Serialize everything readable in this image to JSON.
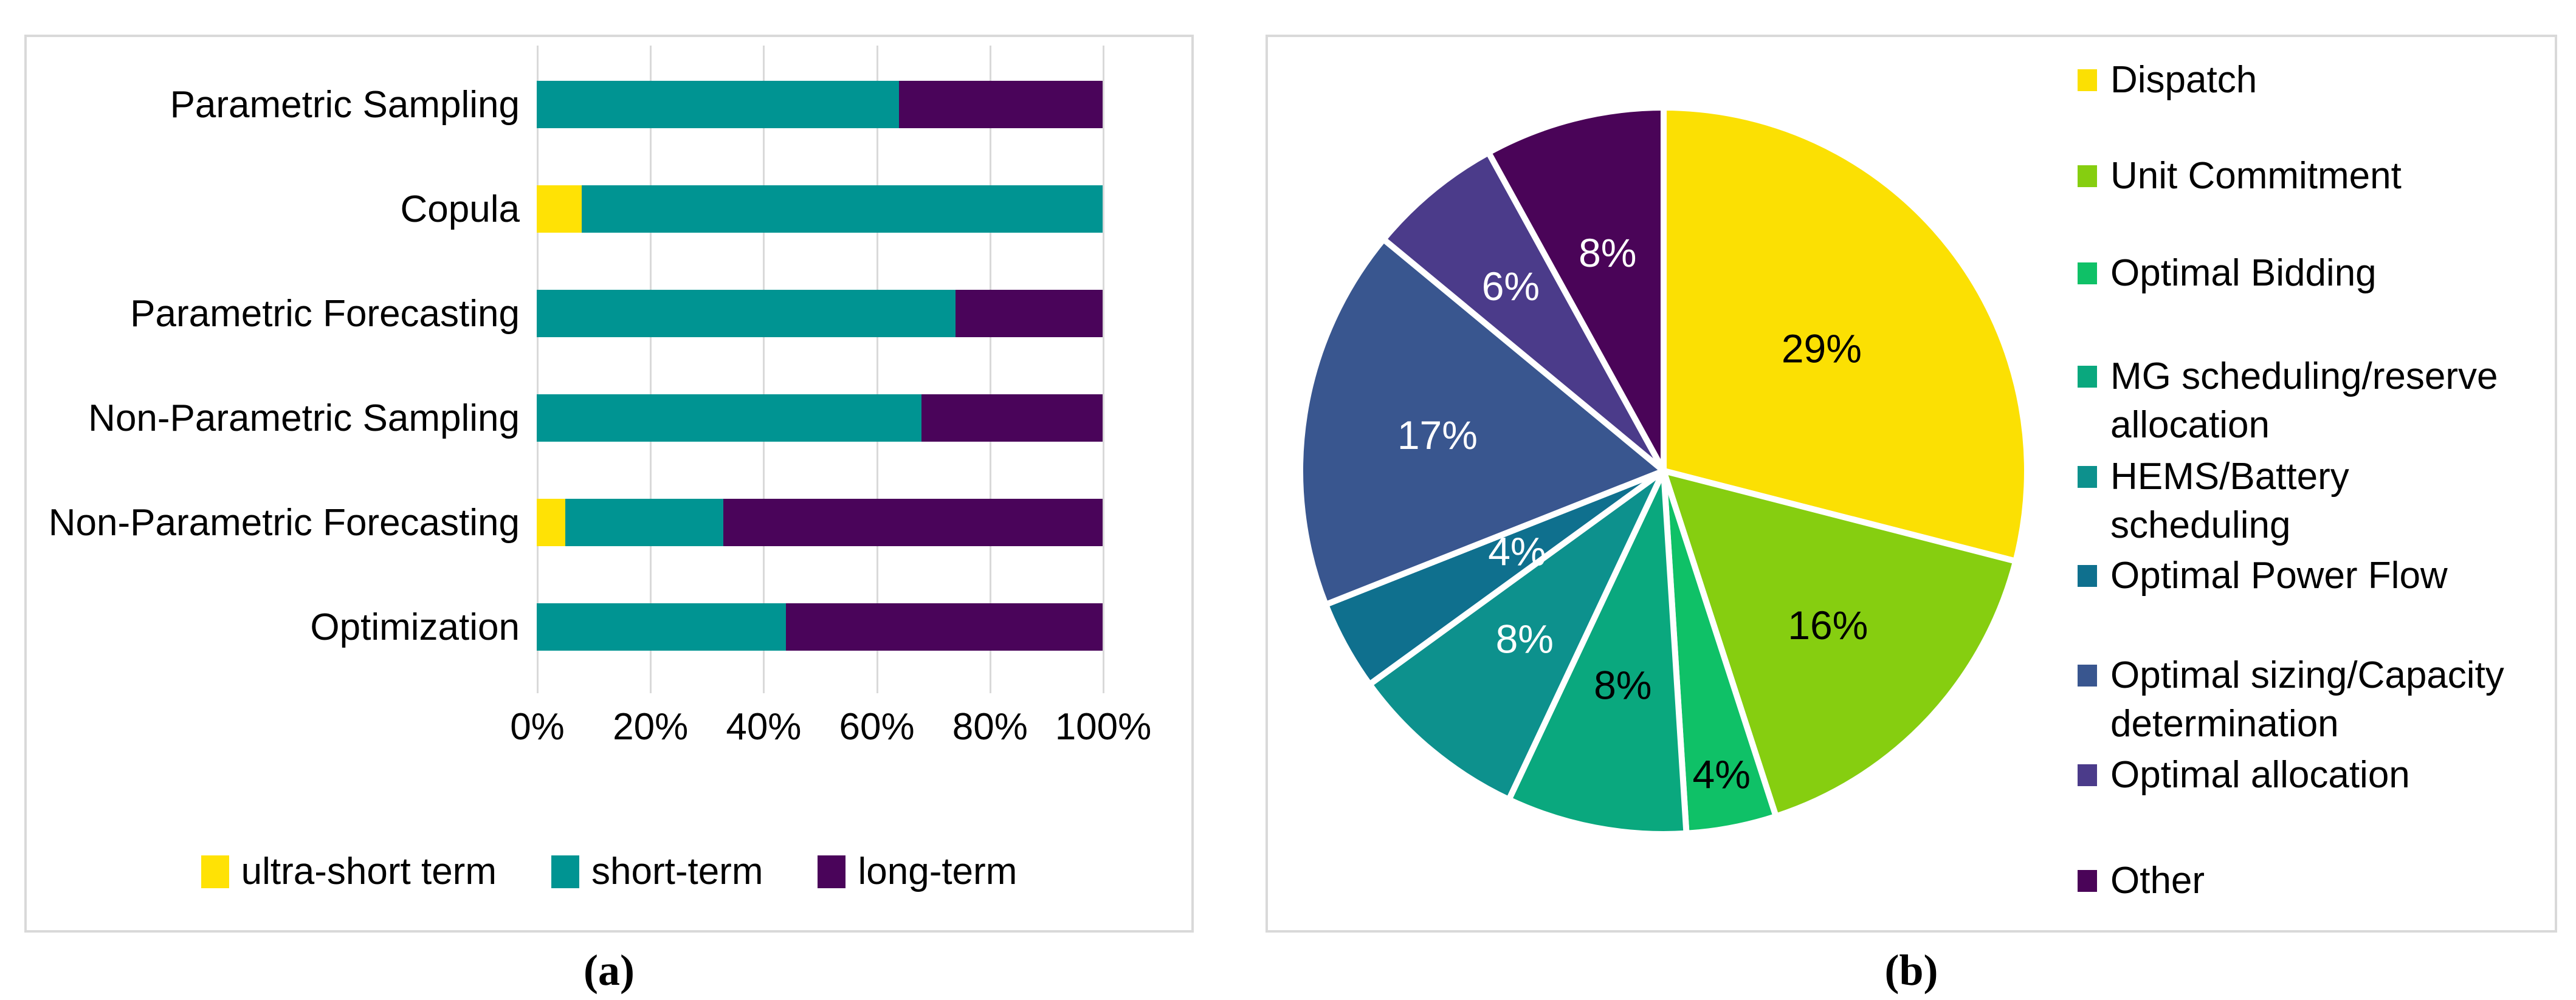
{
  "captions": {
    "a": "(a)",
    "b": "(b)"
  },
  "colors": {
    "panel_border": "#d9d9d9",
    "gridline": "#d9d9d9",
    "ultra_short": "#FFE205",
    "short": "#009492",
    "long": "#4A045A",
    "pie_slices": [
      "#FBE003",
      "#86CE10",
      "#0FC167",
      "#0AA87E",
      "#0D918D",
      "#0F708E",
      "#39568F",
      "#4B3B8A",
      "#4A0458"
    ]
  },
  "chart_data": [
    {
      "type": "bar",
      "orientation": "horizontal-stacked",
      "title": "",
      "categories": [
        "Parametric Sampling",
        "Copula",
        "Parametric Forecasting",
        "Non-Parametric Sampling",
        "Non-Parametric Forecasting",
        "Optimization"
      ],
      "series": [
        {
          "name": "ultra-short term",
          "color_key": "ultra_short",
          "values": [
            0,
            8,
            0,
            0,
            5,
            0
          ]
        },
        {
          "name": "short-term",
          "color_key": "short",
          "values": [
            64,
            92,
            74,
            68,
            28,
            44
          ]
        },
        {
          "name": "long-term",
          "color_key": "long",
          "values": [
            36,
            0,
            26,
            32,
            67,
            56
          ]
        }
      ],
      "x_tick_labels": [
        "0%",
        "20%",
        "40%",
        "60%",
        "80%",
        "100%"
      ],
      "xlim": [
        0,
        100
      ],
      "grid": true,
      "legend_position": "bottom"
    },
    {
      "type": "pie",
      "title": "",
      "labels": [
        "Dispatch",
        "Unit Commitment",
        "Optimal Bidding",
        "MG scheduling/reserve\nallocation",
        "HEMS/Battery\nscheduling",
        "Optimal Power Flow",
        "Optimal sizing/Capacity\ndetermination",
        "Optimal allocation",
        "Other"
      ],
      "values": [
        29,
        16,
        4,
        8,
        8,
        4,
        17,
        6,
        8
      ],
      "data_labels": [
        "29%",
        "16%",
        "4%",
        "8%",
        "8%",
        "4%",
        "17%",
        "6%",
        "8%"
      ],
      "data_label_colors": [
        "#000000",
        "#000000",
        "#000000",
        "#000000",
        "#ffffff",
        "#ffffff",
        "#ffffff",
        "#ffffff",
        "#ffffff"
      ],
      "data_label_radius": [
        0.55,
        0.62,
        0.85,
        0.6,
        0.6,
        0.46,
        0.63,
        0.66,
        0.62
      ],
      "start_angle_deg": 0,
      "direction": "clockwise",
      "legend_position": "right"
    }
  ],
  "bar_legend": [
    {
      "label": "ultra-short term",
      "color_key": "ultra_short"
    },
    {
      "label": "short-term",
      "color_key": "short"
    },
    {
      "label": "long-term",
      "color_key": "long"
    }
  ]
}
